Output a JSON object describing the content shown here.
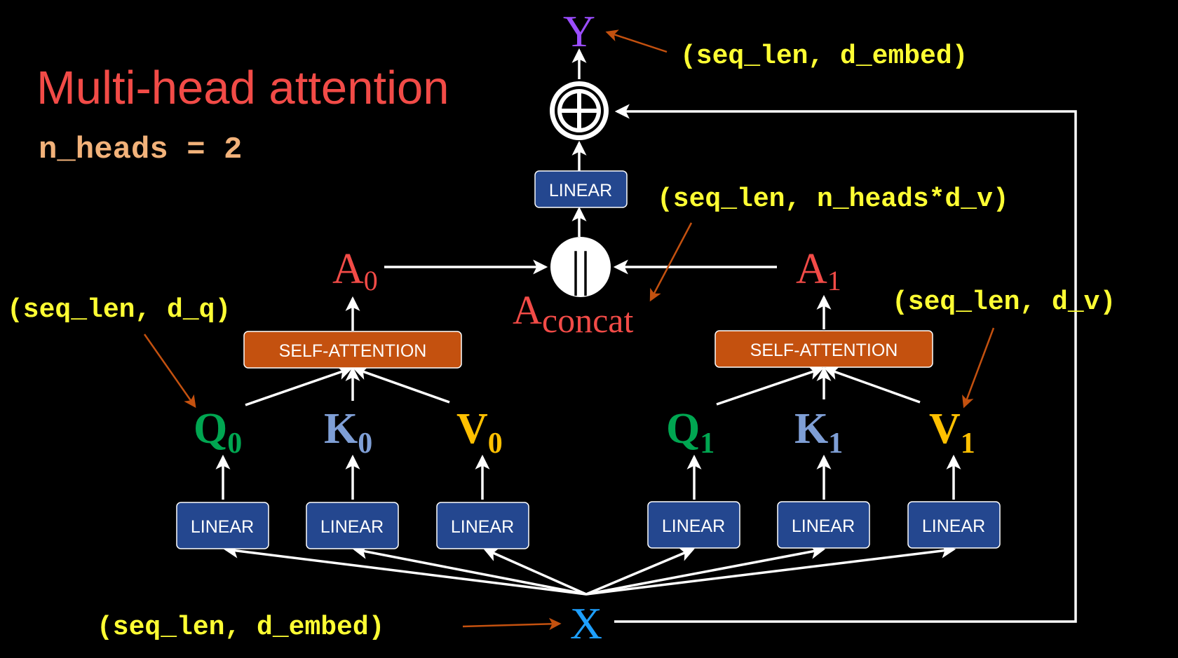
{
  "title": "Multi-head attention",
  "subtitle": "n_heads = 2",
  "colors": {
    "title": "#f24b47",
    "subtitle": "#f2b27a",
    "annotation": "#ffff33",
    "q": "#00a651",
    "k": "#7f9fd6",
    "v": "#ffc000",
    "a": "#f24b47",
    "x": "#1ea0ff",
    "y": "#9b4dff",
    "linear_box": "#24478f",
    "self_attention_box": "#c4510f",
    "pointer_arrow": "#c4510f"
  },
  "annotations": {
    "y_shape": "(seq_len, d_embed)",
    "concat_shape": "(seq_len, n_heads*d_v)",
    "q_shape": "(seq_len, d_q)",
    "v_shape": "(seq_len, d_v)",
    "x_shape": "(seq_len, d_embed)"
  },
  "nodes": {
    "y": "Y",
    "x": "X",
    "linear_out": "LINEAR",
    "concat_symbol": "||",
    "a_concat": {
      "base": "A",
      "sub": "concat"
    }
  },
  "heads": [
    {
      "self_attention": "SELF-ATTENTION",
      "a": {
        "base": "A",
        "sub": "0"
      },
      "q": {
        "base": "Q",
        "sub": "0"
      },
      "k": {
        "base": "K",
        "sub": "0"
      },
      "v": {
        "base": "V",
        "sub": "0"
      },
      "linear_q": "LINEAR",
      "linear_k": "LINEAR",
      "linear_v": "LINEAR"
    },
    {
      "self_attention": "SELF-ATTENTION",
      "a": {
        "base": "A",
        "sub": "1"
      },
      "q": {
        "base": "Q",
        "sub": "1"
      },
      "k": {
        "base": "K",
        "sub": "1"
      },
      "v": {
        "base": "V",
        "sub": "1"
      },
      "linear_q": "LINEAR",
      "linear_k": "LINEAR",
      "linear_v": "LINEAR"
    }
  ]
}
